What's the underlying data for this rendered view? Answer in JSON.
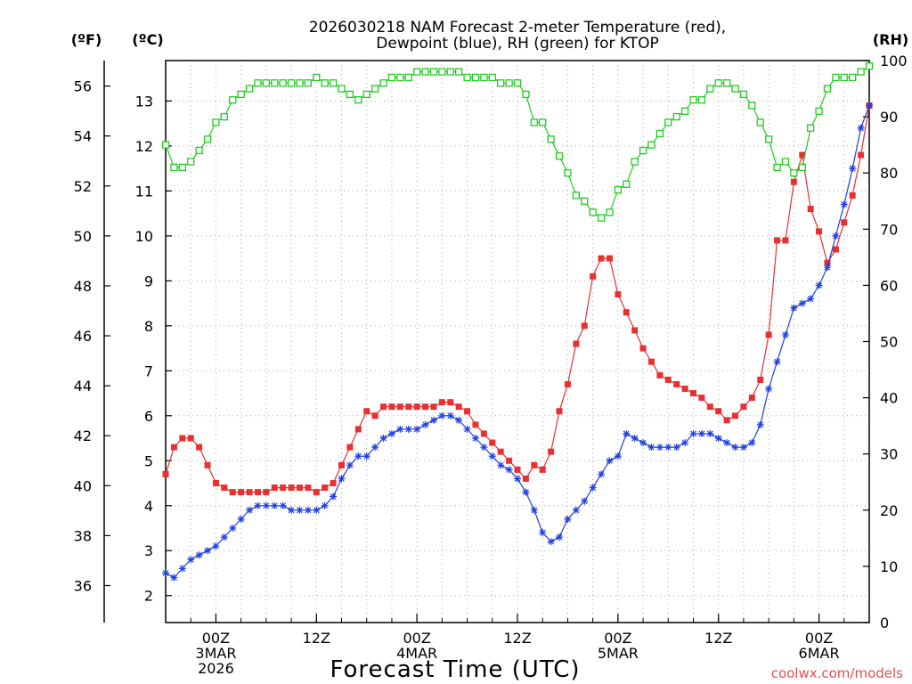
{
  "chart_data": {
    "type": "line",
    "title_line1": "2026030218 NAM Forecast 2-meter Temperature (red),",
    "title_line2": "Dewpoint (blue), RH (green) for KTOP",
    "xlabel": "Forecast Time (UTC)",
    "watermark": "coolwx.com/models",
    "axis_units": {
      "fahrenheit": "(ºF)",
      "celsius": "(ºC)",
      "rh": "(RH)"
    },
    "celsius_axis": {
      "range": [
        1.4,
        13.9
      ],
      "ticks": [
        2,
        3,
        4,
        5,
        6,
        7,
        8,
        9,
        10,
        11,
        12,
        13
      ]
    },
    "fahrenheit_axis": {
      "ticks": [
        36,
        38,
        40,
        42,
        44,
        46,
        48,
        50,
        52,
        54,
        56
      ]
    },
    "rh_axis": {
      "range": [
        0,
        100
      ],
      "ticks": [
        0,
        10,
        20,
        30,
        40,
        50,
        60,
        70,
        80,
        90,
        100
      ]
    },
    "x_range_hours": [
      0,
      84
    ],
    "x_ticks": [
      {
        "hour": 6,
        "labels": [
          "00Z",
          "3MAR",
          "2026"
        ]
      },
      {
        "hour": 18,
        "labels": [
          "12Z"
        ]
      },
      {
        "hour": 30,
        "labels": [
          "00Z",
          "4MAR"
        ]
      },
      {
        "hour": 42,
        "labels": [
          "12Z"
        ]
      },
      {
        "hour": 54,
        "labels": [
          "00Z",
          "5MAR"
        ]
      },
      {
        "hour": 66,
        "labels": [
          "12Z"
        ]
      },
      {
        "hour": 78,
        "labels": [
          "00Z",
          "6MAR"
        ]
      }
    ],
    "grid": true,
    "series": [
      {
        "key": "temperature",
        "color": "#e83030",
        "marker": "filled-square",
        "axis": "celsius",
        "values": [
          4.7,
          5.3,
          5.5,
          5.5,
          5.3,
          4.9,
          4.5,
          4.4,
          4.3,
          4.3,
          4.3,
          4.3,
          4.3,
          4.4,
          4.4,
          4.4,
          4.4,
          4.4,
          4.3,
          4.4,
          4.5,
          4.9,
          5.3,
          5.7,
          6.1,
          6.0,
          6.2,
          6.2,
          6.2,
          6.2,
          6.2,
          6.2,
          6.2,
          6.3,
          6.3,
          6.2,
          6.1,
          5.8,
          5.6,
          5.4,
          5.2,
          5.0,
          4.8,
          4.6,
          4.9,
          4.8,
          5.2,
          6.1,
          6.7,
          7.6,
          8.0,
          9.1,
          9.5,
          9.5,
          8.7,
          8.3,
          7.9,
          7.5,
          7.2,
          6.9,
          6.8,
          6.7,
          6.6,
          6.5,
          6.4,
          6.2,
          6.1,
          5.9,
          6.0,
          6.2,
          6.4,
          6.8,
          7.8,
          9.9,
          9.9,
          11.2,
          11.8,
          10.6,
          10.1,
          9.4,
          9.7,
          10.3,
          10.9,
          11.8,
          12.9
        ]
      },
      {
        "key": "dewpoint",
        "color": "#2040e0",
        "marker": "star",
        "axis": "celsius",
        "values": [
          2.5,
          2.4,
          2.6,
          2.8,
          2.9,
          3.0,
          3.1,
          3.3,
          3.5,
          3.7,
          3.9,
          4.0,
          4.0,
          4.0,
          4.0,
          3.9,
          3.9,
          3.9,
          3.9,
          4.0,
          4.2,
          4.6,
          4.9,
          5.1,
          5.1,
          5.3,
          5.5,
          5.6,
          5.7,
          5.7,
          5.7,
          5.8,
          5.9,
          6.0,
          6.0,
          5.9,
          5.7,
          5.5,
          5.3,
          5.1,
          4.9,
          4.8,
          4.6,
          4.3,
          3.9,
          3.4,
          3.2,
          3.3,
          3.7,
          3.9,
          4.1,
          4.4,
          4.7,
          5.0,
          5.1,
          5.6,
          5.5,
          5.4,
          5.3,
          5.3,
          5.3,
          5.3,
          5.4,
          5.6,
          5.6,
          5.6,
          5.5,
          5.4,
          5.3,
          5.3,
          5.4,
          5.8,
          6.6,
          7.2,
          7.8,
          8.4,
          8.5,
          8.6,
          8.9,
          9.3,
          10.0,
          10.7,
          11.5,
          12.4,
          12.9
        ]
      },
      {
        "key": "rh",
        "color": "#20cc20",
        "marker": "open-square",
        "axis": "rh",
        "values": [
          85,
          81,
          81,
          82,
          84,
          86,
          89,
          90,
          93,
          94,
          95,
          96,
          96,
          96,
          96,
          96,
          96,
          96,
          97,
          96,
          96,
          95,
          94,
          93,
          94,
          95,
          96,
          97,
          97,
          97,
          98,
          98,
          98,
          98,
          98,
          98,
          97,
          97,
          97,
          97,
          96,
          96,
          96,
          94,
          89,
          89,
          86,
          83,
          80,
          76,
          75,
          73,
          72,
          73,
          77,
          78,
          82,
          84,
          85,
          87,
          89,
          90,
          91,
          93,
          93,
          95,
          96,
          96,
          95,
          94,
          92,
          89,
          86,
          81,
          82,
          80,
          81,
          88,
          91,
          95,
          97,
          97,
          97,
          98,
          99
        ]
      }
    ]
  }
}
